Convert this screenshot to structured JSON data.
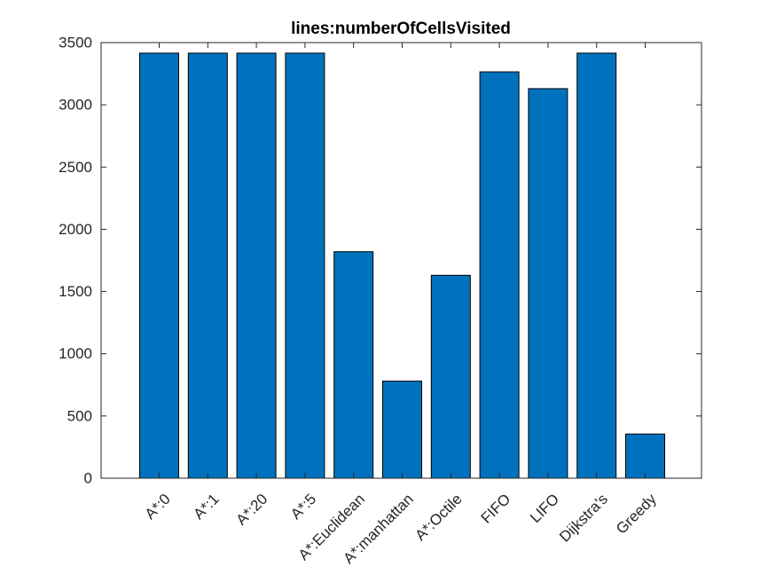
{
  "chart_data": {
    "type": "bar",
    "title": "lines:numberOfCellsVisited",
    "xlabel": "",
    "ylabel": "",
    "categories": [
      "A*:0",
      "A*:1",
      "A*:20",
      "A*:5",
      "A*:Euclidean",
      "A*:manhattan",
      "A*:Octile",
      "FIFO",
      "LIFO",
      "Dijkstra's",
      "Greedy"
    ],
    "values": [
      3415,
      3415,
      3415,
      3415,
      1820,
      780,
      1630,
      3265,
      3130,
      3415,
      355
    ],
    "ylim": [
      0,
      3500
    ],
    "yticks": [
      0,
      500,
      1000,
      1500,
      2000,
      2500,
      3000,
      3500
    ],
    "ytick_labels": [
      "0",
      "500",
      "1000",
      "1500",
      "2000",
      "2500",
      "3000",
      "3500"
    ],
    "bar_color": "#0072BD",
    "grid": false,
    "legend": "none"
  }
}
